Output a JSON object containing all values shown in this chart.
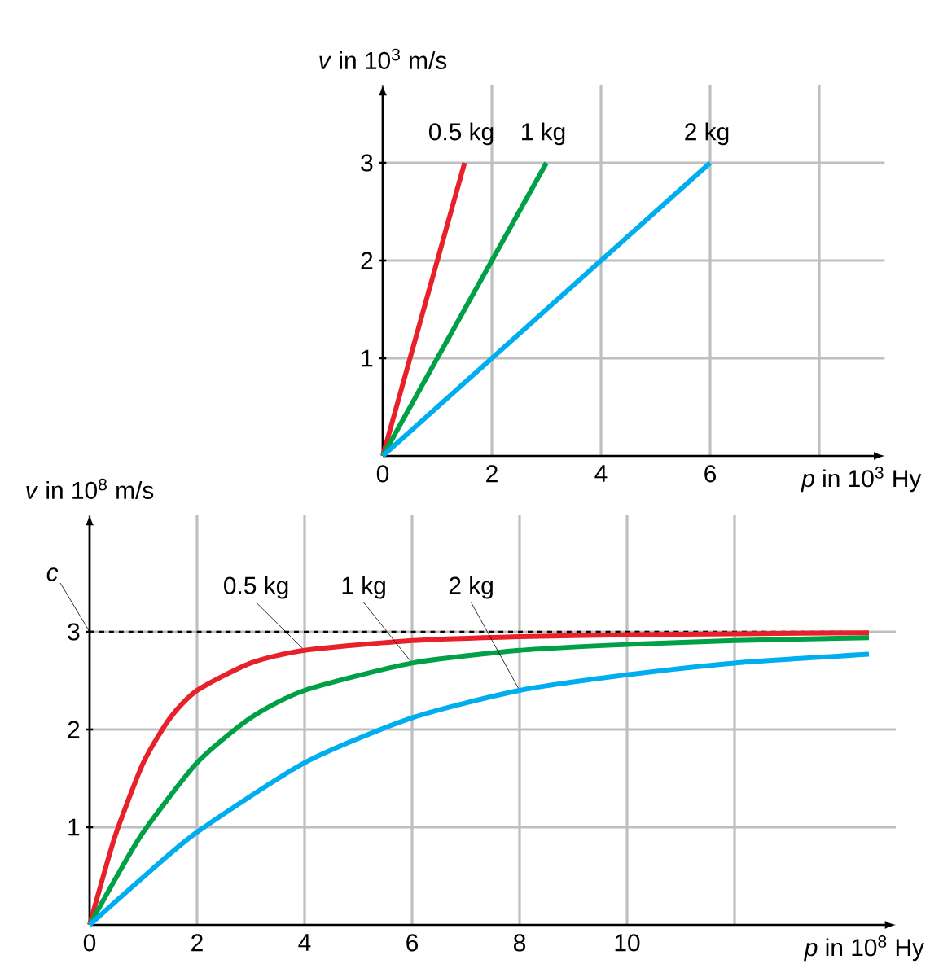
{
  "chart_data": [
    {
      "type": "line",
      "xlabel": "*p* in 10$^{3}$ Hy",
      "ylabel": "*v* in 10$^{3}$ m/s",
      "xlim": [
        0,
        9.2
      ],
      "ylim": [
        0,
        3.8
      ],
      "xticks": [
        0,
        2,
        4,
        6,
        {
          "value": 8,
          "label": null
        }
      ],
      "yticks": [
        1,
        2,
        3
      ],
      "grid": true,
      "series": [
        {
          "name": "0.5 kg",
          "color": "#e8202a",
          "x": [
            0,
            1.5
          ],
          "values": [
            0,
            3
          ]
        },
        {
          "name": "1 kg",
          "color": "#00a046",
          "x": [
            0,
            3
          ],
          "values": [
            0,
            3
          ]
        },
        {
          "name": "2 kg",
          "color": "#00aeef",
          "x": [
            0,
            6
          ],
          "values": [
            0,
            3
          ]
        }
      ]
    },
    {
      "type": "line",
      "xlabel": "*p* in 10$^{8}$ Hy",
      "ylabel": "*v* in 10$^{8}$ m/s",
      "xlim": [
        0,
        15
      ],
      "ylim": [
        0,
        4.2
      ],
      "xticks": [
        0,
        2,
        4,
        6,
        8,
        10,
        {
          "value": 12,
          "label": null
        }
      ],
      "yticks": [
        1,
        2,
        3
      ],
      "grid": true,
      "ref_lines": [
        {
          "axis": "y",
          "value": 3,
          "label": "c",
          "line_style": "dashed",
          "color": "#000000"
        }
      ],
      "series": [
        {
          "name": "0.5 kg",
          "color": "#e8202a",
          "x": [
            0,
            0.25,
            0.5,
            1,
            1.5,
            2,
            3,
            4,
            6,
            8,
            10,
            12,
            14.5
          ],
          "values": [
            0,
            0.49,
            0.95,
            1.66,
            2.12,
            2.4,
            2.68,
            2.81,
            2.91,
            2.95,
            2.97,
            2.98,
            2.99
          ]
        },
        {
          "name": "1 kg",
          "color": "#00a046",
          "x": [
            0,
            0.5,
            1,
            2,
            3,
            4,
            6,
            8,
            10,
            12,
            14.5
          ],
          "values": [
            0,
            0.49,
            0.95,
            1.66,
            2.12,
            2.4,
            2.68,
            2.81,
            2.87,
            2.91,
            2.94
          ]
        },
        {
          "name": "2 kg",
          "color": "#00aeef",
          "x": [
            0,
            1,
            2,
            4,
            6,
            8,
            10,
            12,
            14.5
          ],
          "values": [
            0,
            0.49,
            0.95,
            1.66,
            2.12,
            2.4,
            2.56,
            2.68,
            2.77
          ]
        }
      ]
    }
  ]
}
